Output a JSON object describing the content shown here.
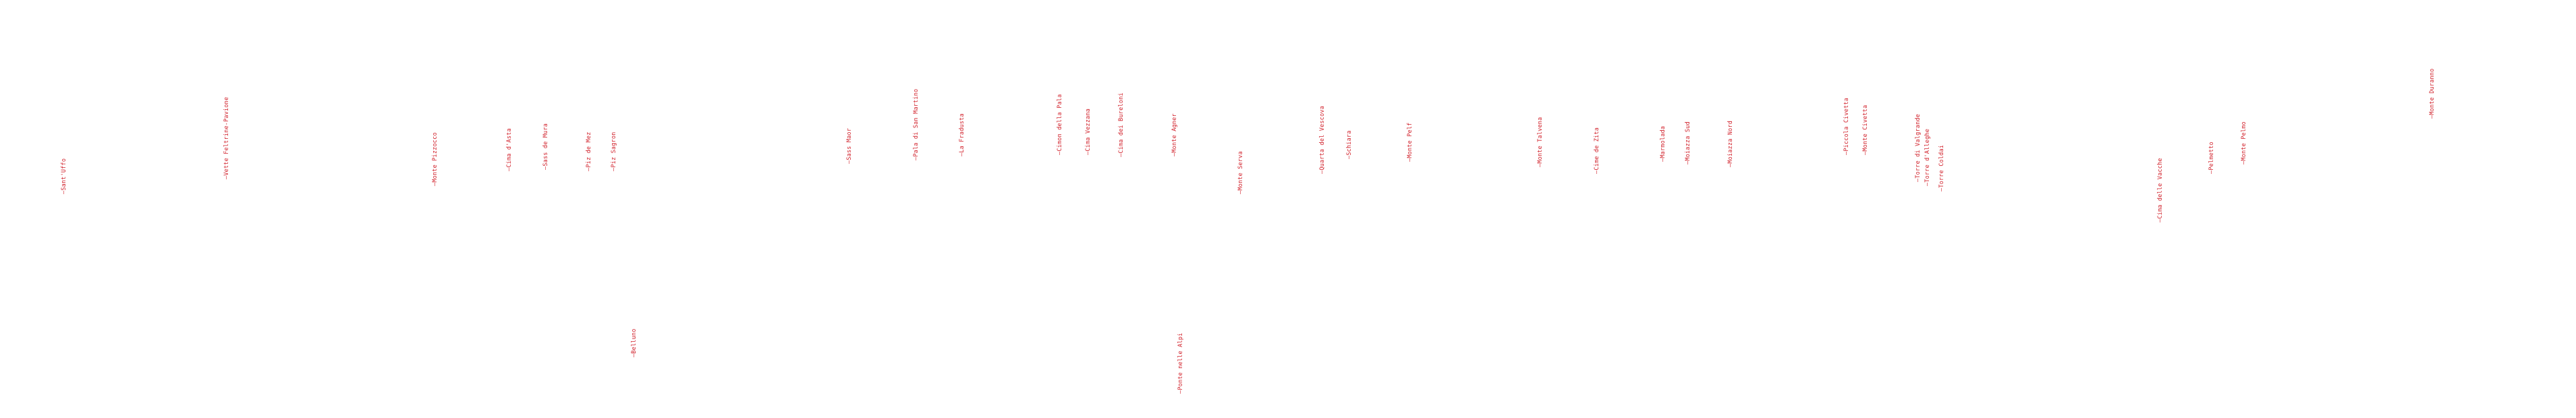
{
  "peaks": [
    {
      "label": "Sant'Uffo"
    },
    {
      "label": "Vette Feltrine-Pavione"
    },
    {
      "label": "Monte Pizzocco"
    },
    {
      "label": "Cima d'Asta"
    },
    {
      "label": "Sass de Mura"
    },
    {
      "label": "Piz de Mez"
    },
    {
      "label": "Piz Sagron"
    },
    {
      "label": "Belluno"
    },
    {
      "label": "Sass Maor"
    },
    {
      "label": "Pala di San Martino"
    },
    {
      "label": "La Fradusta"
    },
    {
      "label": "Cimon della Pala"
    },
    {
      "label": "Cima Vezzana"
    },
    {
      "label": "Cima dei Bureloni"
    },
    {
      "label": "Monte Agner"
    },
    {
      "label": "Ponte nelle Alpi"
    },
    {
      "label": "Monte Serva"
    },
    {
      "label": "Quarta del Vescova"
    },
    {
      "label": "Schiara"
    },
    {
      "label": "Monte Pelf"
    },
    {
      "label": "Monte Talvena"
    },
    {
      "label": "Cime de Zita"
    },
    {
      "label": "Marmolada"
    },
    {
      "label": "Moiazza Sud"
    },
    {
      "label": "Moiazza Nord"
    },
    {
      "label": "Piccola Civetta"
    },
    {
      "label": "Monte Civetta"
    },
    {
      "label": "Torre di Valgrande"
    },
    {
      "label": "Torre d'Alleghe"
    },
    {
      "label": "Torre Coldai"
    },
    {
      "label": "Cima delle Vacche"
    },
    {
      "label": "Pelmetto"
    },
    {
      "label": "Monte Pelmo"
    },
    {
      "label": "Monte Duranno"
    }
  ]
}
